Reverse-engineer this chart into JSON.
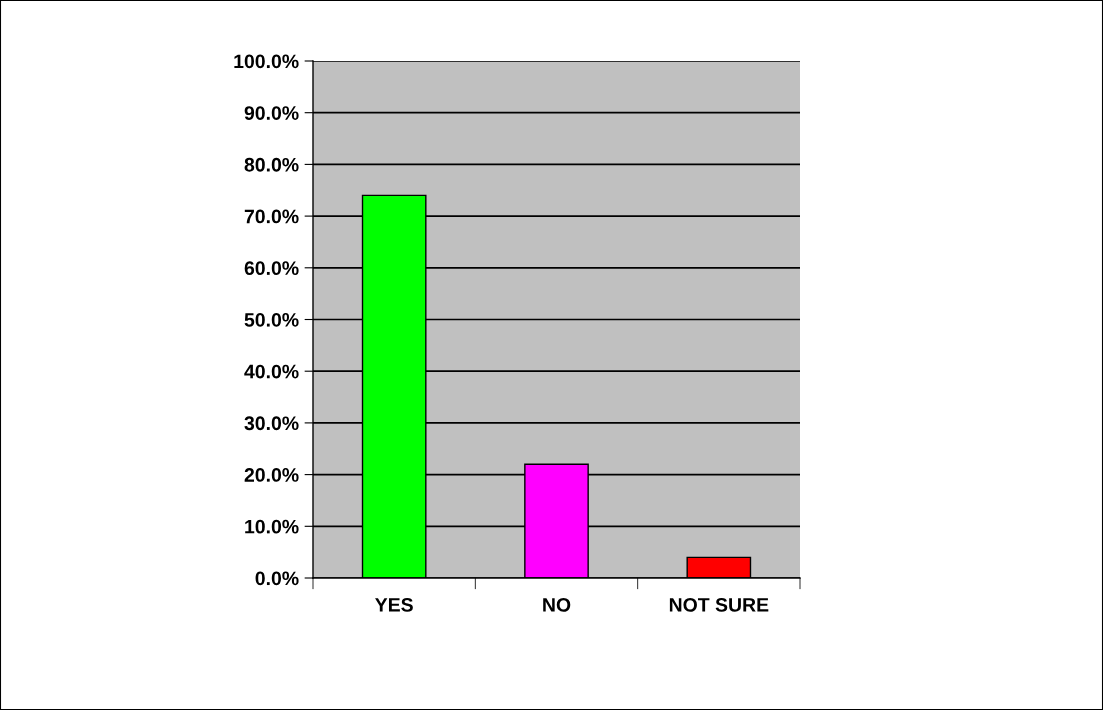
{
  "chart_data": {
    "type": "bar",
    "categories": [
      "YES",
      "NO",
      "NOT SURE"
    ],
    "values": [
      74,
      22,
      4
    ],
    "colors": [
      "#00ff00",
      "#ff00ff",
      "#ff0000"
    ],
    "ylim": [
      0,
      100
    ],
    "yticks": [
      {
        "value": 0,
        "label": "0.0%"
      },
      {
        "value": 10,
        "label": "10.0%"
      },
      {
        "value": 20,
        "label": "20.0%"
      },
      {
        "value": 30,
        "label": "30.0%"
      },
      {
        "value": 40,
        "label": "40.0%"
      },
      {
        "value": 50,
        "label": "50.0%"
      },
      {
        "value": 60,
        "label": "60.0%"
      },
      {
        "value": 70,
        "label": "70.0%"
      },
      {
        "value": 80,
        "label": "80.0%"
      },
      {
        "value": 90,
        "label": "90.0%"
      },
      {
        "value": 100,
        "label": "100.0%"
      }
    ],
    "grid": "y"
  }
}
